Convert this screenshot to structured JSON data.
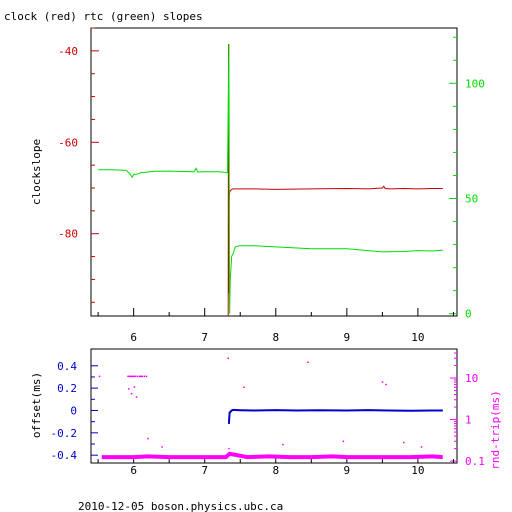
{
  "page": {
    "title": "clock (red) rtc (green) slopes",
    "footer": "2010-12-05  boson.physics.ubc.ca"
  },
  "colors": {
    "clock": "#cc0000",
    "rtc": "#00dd00",
    "offset": "#0000cc",
    "rtt": "#ff00ff",
    "axis": "#000000"
  },
  "chart_data": [
    {
      "type": "line",
      "title": "clock (red) rtc (green) slopes",
      "xlabel": "",
      "ylabel": "clockslope",
      "xlim": [
        5.4,
        10.55
      ],
      "ylim": [
        -98,
        -35
      ],
      "y2lim": [
        -1,
        124
      ],
      "x_ticks": [
        "6",
        "7",
        "8",
        "9",
        "10"
      ],
      "y_ticks": [
        "-40",
        "-60",
        "-80"
      ],
      "y2_ticks": [
        "0",
        "50",
        "100"
      ],
      "series": [
        {
          "name": "clock",
          "axis": "left",
          "x": [
            7.33,
            7.335,
            7.34,
            7.345,
            7.35,
            7.36,
            7.38,
            7.4,
            7.5,
            7.7,
            8.0,
            8.5,
            9.0,
            9.3,
            9.5,
            9.52,
            9.54,
            9.6,
            9.8,
            10.0,
            10.2,
            10.35
          ],
          "y": [
            -98,
            -38.5,
            -93,
            -73,
            -71,
            -70.6,
            -70.3,
            -70.2,
            -70.2,
            -70.2,
            -70.3,
            -70.2,
            -70.1,
            -70.2,
            -70.0,
            -69.6,
            -70.1,
            -70.2,
            -70.1,
            -70.2,
            -70.1,
            -70.1
          ]
        },
        {
          "name": "rtc",
          "axis": "right",
          "x": [
            5.5,
            5.7,
            5.9,
            5.95,
            5.98,
            6.0,
            6.05,
            6.1,
            6.3,
            6.5,
            6.7,
            6.85,
            6.88,
            6.9,
            7.0,
            7.2,
            7.32,
            7.34,
            7.35,
            7.36,
            7.38,
            7.4,
            7.43,
            7.5,
            7.7,
            8.0,
            8.5,
            9.0,
            9.5,
            9.8,
            10.0,
            10.2,
            10.35
          ],
          "y": [
            62.5,
            62.5,
            62.2,
            60.6,
            59.2,
            60.4,
            60.6,
            61.2,
            61.8,
            61.9,
            61.7,
            61.6,
            63.1,
            61.5,
            61.6,
            61.6,
            61.2,
            117,
            0,
            15,
            25,
            26,
            29,
            29.5,
            29.5,
            29.0,
            28.2,
            28.2,
            26.8,
            27.0,
            27.4,
            27.2,
            27.6
          ]
        }
      ]
    },
    {
      "type": "scatter",
      "title": "",
      "xlabel": "",
      "ylabel": "offset(ms)",
      "y2label": "rnd-trip(ms)",
      "y2scale": "log",
      "xlim": [
        5.4,
        10.55
      ],
      "ylim": [
        -0.47,
        0.55
      ],
      "y2lim": [
        0.09,
        50
      ],
      "x_ticks": [
        "6",
        "7",
        "8",
        "9",
        "10"
      ],
      "y_ticks": [
        "0.4",
        "0.2",
        "0",
        "-0.2",
        "-0.4"
      ],
      "y2_ticks": [
        "10",
        "1",
        "0.1"
      ],
      "series": [
        {
          "name": "offset",
          "axis": "left",
          "x": [
            7.34,
            7.35,
            7.38,
            7.4,
            7.5,
            7.7,
            8.0,
            8.3,
            8.6,
            9.0,
            9.3,
            9.6,
            9.9,
            10.2,
            10.35
          ],
          "y": [
            -0.12,
            -0.02,
            0.0,
            0.005,
            0.002,
            0.0,
            0.003,
            0.0,
            0.002,
            0.0,
            0.003,
            0.0,
            -0.002,
            0.0,
            0.0
          ]
        },
        {
          "name": "rnd-trip",
          "axis": "right",
          "x": [
            5.55,
            5.8,
            6.0,
            6.2,
            6.5,
            6.8,
            7.0,
            7.3,
            7.35,
            7.6,
            7.9,
            8.2,
            8.5,
            8.8,
            9.0,
            9.3,
            9.6,
            9.9,
            10.2,
            10.35
          ],
          "y": [
            0.125,
            0.125,
            0.125,
            0.13,
            0.125,
            0.125,
            0.125,
            0.125,
            0.15,
            0.125,
            0.13,
            0.125,
            0.125,
            0.13,
            0.125,
            0.125,
            0.125,
            0.125,
            0.13,
            0.125
          ]
        },
        {
          "name": "rnd-trip-outliers",
          "axis": "right",
          "x": [
            5.52,
            5.92,
            5.94,
            5.96,
            5.98,
            6.0,
            6.02,
            6.05,
            6.08,
            6.1,
            6.12,
            6.15,
            6.18,
            5.93,
            5.97,
            6.01,
            6.04,
            6.2,
            6.4,
            7.33,
            7.34,
            7.55,
            8.1,
            8.45,
            8.95,
            9.5,
            9.55,
            9.8,
            10.05
          ],
          "y": [
            11,
            11,
            11,
            11,
            11,
            11,
            11,
            11,
            11,
            11,
            11,
            11,
            11,
            5.5,
            4.2,
            6.1,
            3.5,
            0.35,
            0.22,
            30,
            0.2,
            6,
            0.25,
            24,
            0.3,
            8,
            7,
            0.28,
            0.22
          ]
        }
      ]
    }
  ]
}
